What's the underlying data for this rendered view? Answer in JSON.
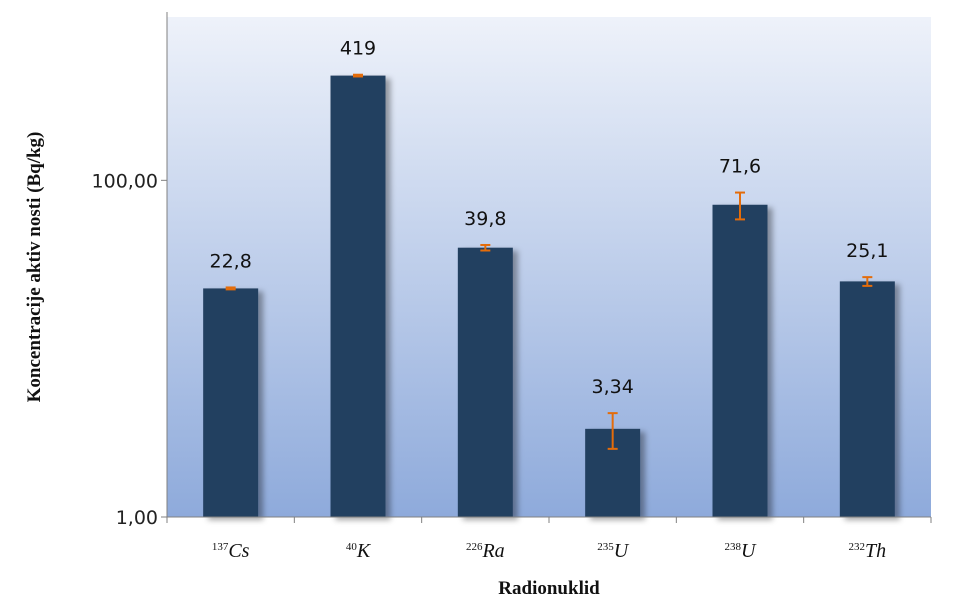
{
  "chart_data": {
    "type": "bar",
    "title": "",
    "xlabel": "Radionuklid",
    "ylabel": "Koncentracije aktiv nosti (Bq/kg)",
    "y_scale": "log",
    "ylim": [
      1,
      1000
    ],
    "y_ticks": [
      {
        "value": 1,
        "label": "1,00"
      },
      {
        "value": 100,
        "label": "100,00"
      }
    ],
    "categories": [
      {
        "sup": "137",
        "sym": "Cs"
      },
      {
        "sup": "40",
        "sym": "K"
      },
      {
        "sup": "226",
        "sym": "Ra"
      },
      {
        "sup": "235",
        "sym": "U"
      },
      {
        "sup": "238",
        "sym": "U"
      },
      {
        "sup": "232",
        "sym": "Th"
      }
    ],
    "values": [
      22.8,
      419,
      39.8,
      3.34,
      71.6,
      25.1
    ],
    "value_labels": [
      "22,8",
      "419",
      "39,8",
      "3,34",
      "71,6",
      "25,1"
    ],
    "errors": [
      0.3,
      5,
      1.5,
      0.8,
      13,
      1.5
    ],
    "legend": "none",
    "grid": false,
    "colors": {
      "bar": "#243f60",
      "error_bar": "#e46c0a",
      "plot_bg_top": "#eef2fa",
      "plot_bg_bottom": "#8eaadb"
    }
  }
}
